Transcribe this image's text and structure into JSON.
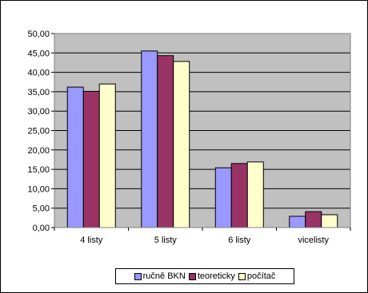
{
  "chart_data": {
    "type": "bar",
    "categories": [
      "4 listy",
      "5 listy",
      "6 listy",
      "vicelisty"
    ],
    "series": [
      {
        "name": "ručně BKN",
        "color": "#9999ff",
        "values": [
          36.2,
          45.5,
          15.4,
          2.9
        ]
      },
      {
        "name": "teoreticky",
        "color": "#993366",
        "values": [
          35.1,
          44.3,
          16.5,
          4.1
        ]
      },
      {
        "name": "počítač",
        "color": "#ffffcc",
        "values": [
          37.0,
          42.8,
          16.9,
          3.3
        ]
      }
    ],
    "ylim": [
      0,
      50
    ],
    "ytick_step": 5,
    "ytick_labels": [
      "0,00",
      "5,00",
      "10,00",
      "15,00",
      "20,00",
      "25,00",
      "30,00",
      "35,00",
      "40,00",
      "45,00",
      "50,00"
    ],
    "grid": true,
    "plot_background": "#c0c0c0",
    "legend_position": "bottom",
    "title": "",
    "xlabel": "",
    "ylabel": ""
  }
}
